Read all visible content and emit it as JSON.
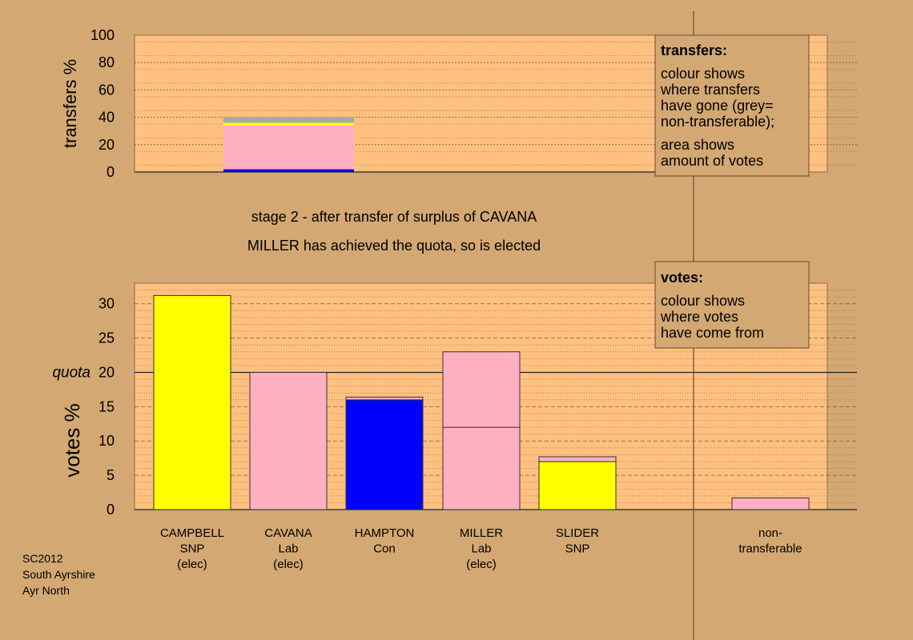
{
  "colors": {
    "background": "#d4a872",
    "plot_bg": "#ffc080",
    "SNP": "#ffff00",
    "Lab": "#ffb0c0",
    "Con": "#0000ff",
    "nontransferable": "#a8a8a8"
  },
  "captions": {
    "stage": "stage 2 - after transfer of surplus of CAVANA",
    "elected": "MILLER has achieved the quota, so is elected"
  },
  "footer": [
    "SC2012",
    "South Ayrshire",
    "Ayr North"
  ],
  "legend_transfers": {
    "title": "transfers:",
    "lines": [
      "colour shows",
      "where transfers",
      "have gone (grey=",
      "non-transferable);",
      "area shows",
      "amount of votes"
    ]
  },
  "legend_votes": {
    "title": "votes:",
    "lines": [
      "colour shows",
      "where votes",
      "have come from"
    ]
  },
  "chart_data": [
    {
      "type": "bar",
      "name": "transfers",
      "ylabel": "transfers %",
      "ylim": [
        0,
        100
      ],
      "yticks": [
        0,
        20,
        40,
        60,
        80,
        100
      ],
      "bars": [
        {
          "column": "CAVANA",
          "segments": [
            {
              "party": "Con",
              "value": 2
            },
            {
              "party": "Lab",
              "value": 32
            },
            {
              "party": "SNP",
              "value": 2
            },
            {
              "party": "nontransferable",
              "value": 4
            }
          ]
        }
      ]
    },
    {
      "type": "bar",
      "name": "votes",
      "ylabel": "votes %",
      "ylim": [
        0,
        33
      ],
      "yticks": [
        0,
        5,
        10,
        15,
        20,
        25,
        30
      ],
      "quota": 20,
      "quota_label": "quota",
      "categories": [
        {
          "lines": [
            "CAMPBELL",
            "SNP",
            "(elec)"
          ],
          "segments": [
            {
              "party": "SNP",
              "value": 31.2
            }
          ]
        },
        {
          "lines": [
            "CAVANA",
            "Lab",
            "(elec)"
          ],
          "segments": [
            {
              "party": "Lab",
              "value": 20
            }
          ]
        },
        {
          "lines": [
            "HAMPTON",
            "Con"
          ],
          "segments": [
            {
              "party": "Con",
              "value": 16
            },
            {
              "party": "Lab",
              "value": 0.4
            }
          ]
        },
        {
          "lines": [
            "MILLER",
            "Lab",
            "(elec)"
          ],
          "segments": [
            {
              "party": "Lab",
              "value": 12
            },
            {
              "party": "Lab",
              "value": 11
            }
          ]
        },
        {
          "lines": [
            "SLIDER",
            "SNP"
          ],
          "segments": [
            {
              "party": "SNP",
              "value": 7
            },
            {
              "party": "Lab",
              "value": 0.7
            }
          ]
        },
        {
          "lines": [
            "non-",
            "transferable"
          ],
          "segments": [
            {
              "party": "Lab",
              "value": 1.7
            }
          ]
        }
      ]
    }
  ]
}
